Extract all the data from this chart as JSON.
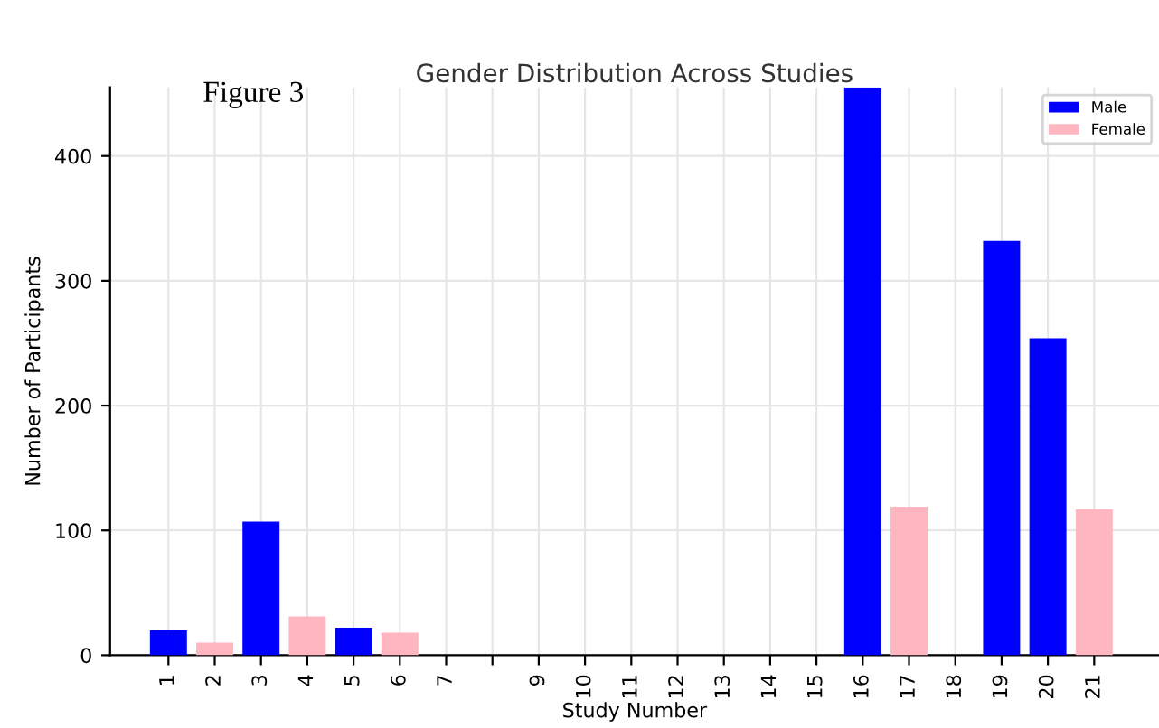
{
  "chart_data": {
    "type": "bar",
    "title": "Gender Distribution Across Studies",
    "xlabel": "Study Number",
    "ylabel": "Number of Participants",
    "annotations": [
      "Figure 3"
    ],
    "categories": [
      "1",
      "2",
      "3",
      "4",
      "5",
      "6",
      "7",
      null,
      "9",
      "10",
      "11",
      "12",
      "13",
      "14",
      "15",
      "16",
      "17",
      "18",
      "19",
      "20",
      "21"
    ],
    "series": [
      {
        "name": "Male",
        "color": "#0000ff",
        "values": [
          20,
          null,
          107,
          null,
          22,
          null,
          null,
          null,
          null,
          null,
          null,
          null,
          null,
          null,
          null,
          455,
          null,
          null,
          332,
          254,
          null
        ]
      },
      {
        "name": "Female",
        "color": "#ffb6c1",
        "values": [
          null,
          10,
          null,
          31,
          null,
          18,
          null,
          null,
          null,
          null,
          null,
          null,
          null,
          null,
          null,
          null,
          119,
          null,
          null,
          null,
          117
        ]
      }
    ],
    "ylim": [
      0,
      455
    ],
    "yticks": [
      0,
      100,
      200,
      300,
      400
    ],
    "grid": true,
    "legend": "top right"
  }
}
